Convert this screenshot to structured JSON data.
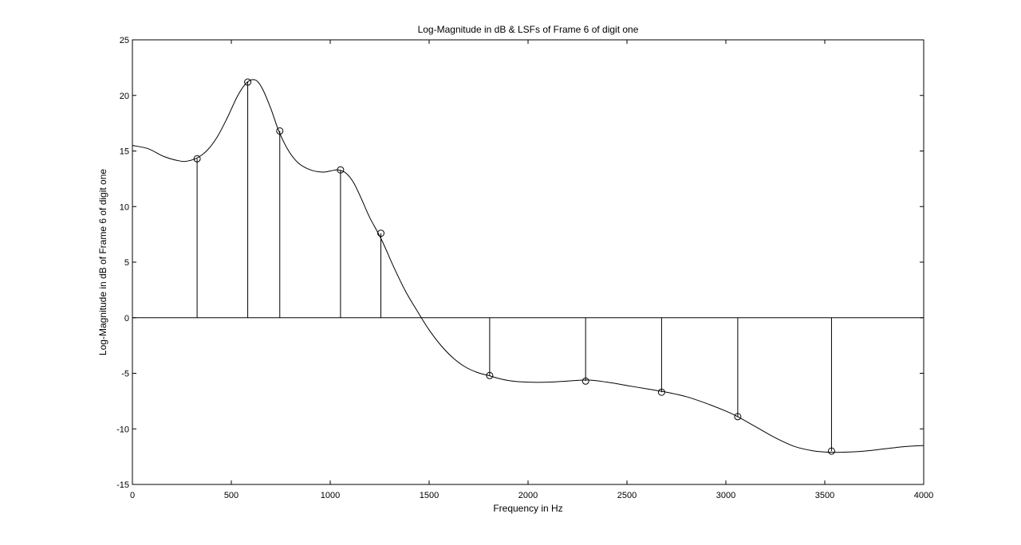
{
  "chart_data": {
    "type": "line",
    "title": "Log-Magnitude in dB & LSFs of Frame 6 of digit one",
    "xlabel": "Frequency in Hz",
    "ylabel": "Log-Magnitude in dB of Frame 6 of digit one",
    "xlim": [
      0,
      4000
    ],
    "ylim": [
      -15,
      25
    ],
    "xticks": [
      0,
      500,
      1000,
      1500,
      2000,
      2500,
      3000,
      3500,
      4000
    ],
    "yticks": [
      -15,
      -10,
      -5,
      0,
      5,
      10,
      15,
      20,
      25
    ],
    "grid": false,
    "curve": {
      "x": [
        0,
        80,
        160,
        240,
        280,
        330,
        380,
        430,
        480,
        530,
        570,
        600,
        630,
        660,
        700,
        740,
        790,
        840,
        900,
        960,
        1000,
        1040,
        1080,
        1120,
        1160,
        1200,
        1260,
        1320,
        1380,
        1440,
        1500,
        1560,
        1620,
        1680,
        1740,
        1800,
        1860,
        1920,
        2000,
        2100,
        2200,
        2300,
        2400,
        2500,
        2600,
        2700,
        2800,
        2900,
        3000,
        3060,
        3150,
        3250,
        3350,
        3450,
        3530,
        3600,
        3700,
        3800,
        3900,
        4000
      ],
      "y": [
        15.5,
        15.2,
        14.5,
        14.1,
        14.1,
        14.4,
        15.1,
        16.3,
        18.0,
        19.9,
        21.0,
        21.4,
        21.3,
        20.5,
        18.8,
        16.8,
        15.0,
        13.9,
        13.3,
        13.1,
        13.2,
        13.3,
        13.0,
        12.1,
        10.6,
        9.0,
        7.0,
        4.6,
        2.4,
        0.6,
        -1.1,
        -2.5,
        -3.6,
        -4.4,
        -4.9,
        -5.2,
        -5.5,
        -5.7,
        -5.8,
        -5.8,
        -5.7,
        -5.6,
        -5.8,
        -6.1,
        -6.4,
        -6.7,
        -7.1,
        -7.7,
        -8.4,
        -8.9,
        -9.8,
        -10.8,
        -11.6,
        -12.0,
        -12.1,
        -12.1,
        -12.0,
        -11.8,
        -11.6,
        -11.5
      ]
    },
    "stems": {
      "type": "stem",
      "x": [
        327,
        583,
        745,
        1052,
        1256,
        1806,
        2291,
        2675,
        3060,
        3534
      ],
      "y": [
        14.3,
        21.2,
        16.8,
        13.3,
        7.6,
        -5.2,
        -5.7,
        -6.7,
        -8.9,
        -12.0
      ]
    }
  }
}
